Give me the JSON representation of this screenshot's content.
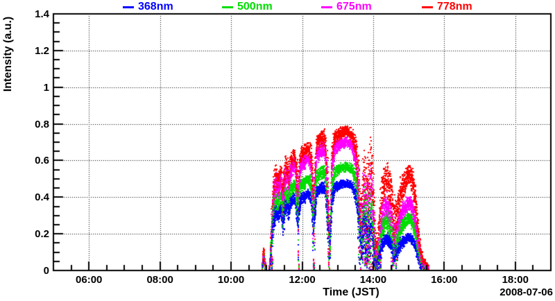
{
  "chart_data": {
    "type": "scatter",
    "title": "",
    "xlabel": "Time (JST)",
    "ylabel": "Intensity (a.u.)",
    "date_label": "2008-07-06",
    "x_axis": {
      "range_hours": [
        5,
        19
      ],
      "major_ticks": [
        {
          "hour": 6,
          "label": "06:00"
        },
        {
          "hour": 8,
          "label": "08:00"
        },
        {
          "hour": 10,
          "label": "10:00"
        },
        {
          "hour": 12,
          "label": "12:00"
        },
        {
          "hour": 14,
          "label": "14:00"
        },
        {
          "hour": 16,
          "label": "16:00"
        },
        {
          "hour": 18,
          "label": "18:00"
        }
      ],
      "minor_tick_step_hours": 0.5
    },
    "y_axis": {
      "range": [
        0,
        1.4
      ],
      "major_ticks": [
        {
          "value": 0,
          "label": "0"
        },
        {
          "value": 0.2,
          "label": "0.2"
        },
        {
          "value": 0.4,
          "label": "0.4"
        },
        {
          "value": 0.6,
          "label": "0.6"
        },
        {
          "value": 0.8,
          "label": "0.8"
        },
        {
          "value": 1,
          "label": "1"
        },
        {
          "value": 1.2,
          "label": "1.2"
        },
        {
          "value": 1.4,
          "label": "1.4"
        }
      ],
      "minor_tick_step": 0.05
    },
    "grid": {
      "style": "dotted",
      "color": "#000000"
    },
    "legend_position": "top",
    "series": [
      {
        "name": "368nm",
        "color": "#0000ff",
        "peak_intensity": 0.475,
        "ratio_to_778nm_morning": 0.625,
        "ratio_to_778nm_afternoon": 0.34
      },
      {
        "name": "500nm",
        "color": "#00dd00",
        "peak_intensity": 0.565,
        "ratio_to_778nm_morning": 0.745,
        "ratio_to_778nm_afternoon": 0.54
      },
      {
        "name": "675nm",
        "color": "#ff00ff",
        "peak_intensity": 0.7,
        "ratio_to_778nm_morning": 0.92,
        "ratio_to_778nm_afternoon": 0.7
      },
      {
        "name": "778nm",
        "color": "#ff0000",
        "peak_intensity": 0.76,
        "ratio_to_778nm_morning": 1.0,
        "ratio_to_778nm_afternoon": 1.0
      }
    ],
    "ratio_blend_window_hours": [
      13.55,
      14.15
    ],
    "envelope_778nm_points": [
      [
        10.87,
        0.005,
        0
      ],
      [
        10.9,
        0.07,
        0.05
      ],
      [
        10.93,
        0.1,
        0.04
      ],
      [
        10.96,
        0.03,
        0.02
      ],
      [
        10.98,
        0.005,
        0
      ],
      [
        11.07,
        0.005,
        0
      ],
      [
        11.1,
        0.05,
        0.04
      ],
      [
        11.15,
        0.28,
        0.14
      ],
      [
        11.21,
        0.46,
        0.1
      ],
      [
        11.27,
        0.52,
        0.06
      ],
      [
        11.33,
        0.47,
        0.06
      ],
      [
        11.4,
        0.53,
        0.05
      ],
      [
        11.47,
        0.4,
        0.13
      ],
      [
        11.54,
        0.56,
        0.06
      ],
      [
        11.62,
        0.52,
        0.09
      ],
      [
        11.7,
        0.6,
        0.05
      ],
      [
        11.8,
        0.63,
        0.04
      ],
      [
        11.88,
        0.44,
        0.15
      ],
      [
        11.96,
        0.62,
        0.05
      ],
      [
        12.06,
        0.64,
        0.04
      ],
      [
        12.16,
        0.67,
        0.03
      ],
      [
        12.26,
        0.62,
        0.06
      ],
      [
        12.33,
        0.37,
        0.16
      ],
      [
        12.41,
        0.69,
        0.05
      ],
      [
        12.52,
        0.71,
        0.04
      ],
      [
        12.64,
        0.72,
        0.04
      ],
      [
        12.73,
        0.45,
        0.18
      ],
      [
        12.78,
        0.13,
        0.1
      ],
      [
        12.84,
        0.62,
        0.12
      ],
      [
        12.92,
        0.72,
        0.04
      ],
      [
        13.02,
        0.74,
        0.03
      ],
      [
        13.14,
        0.755,
        0.025
      ],
      [
        13.28,
        0.76,
        0.025
      ],
      [
        13.4,
        0.74,
        0.03
      ],
      [
        13.5,
        0.68,
        0.06
      ],
      [
        13.58,
        0.52,
        0.15
      ],
      [
        13.66,
        0.25,
        0.18
      ],
      [
        13.74,
        0.48,
        0.2
      ],
      [
        13.82,
        0.35,
        0.24
      ],
      [
        13.9,
        0.5,
        0.22
      ],
      [
        13.96,
        0.58,
        0.15
      ],
      [
        14.02,
        0.28,
        0.2
      ],
      [
        14.08,
        0.1,
        0.07
      ],
      [
        14.14,
        0.15,
        0.1
      ],
      [
        14.2,
        0.32,
        0.14
      ],
      [
        14.3,
        0.47,
        0.1
      ],
      [
        14.4,
        0.5,
        0.09
      ],
      [
        14.5,
        0.43,
        0.12
      ],
      [
        14.58,
        0.3,
        0.14
      ],
      [
        14.66,
        0.26,
        0.12
      ],
      [
        14.76,
        0.42,
        0.1
      ],
      [
        14.88,
        0.48,
        0.07
      ],
      [
        15.0,
        0.53,
        0.05
      ],
      [
        15.1,
        0.5,
        0.07
      ],
      [
        15.18,
        0.4,
        0.1
      ],
      [
        15.26,
        0.22,
        0.1
      ],
      [
        15.34,
        0.09,
        0.05
      ],
      [
        15.42,
        0.04,
        0.02
      ],
      [
        15.5,
        0.025,
        0.015
      ],
      [
        15.56,
        0.015,
        0.01
      ]
    ]
  }
}
